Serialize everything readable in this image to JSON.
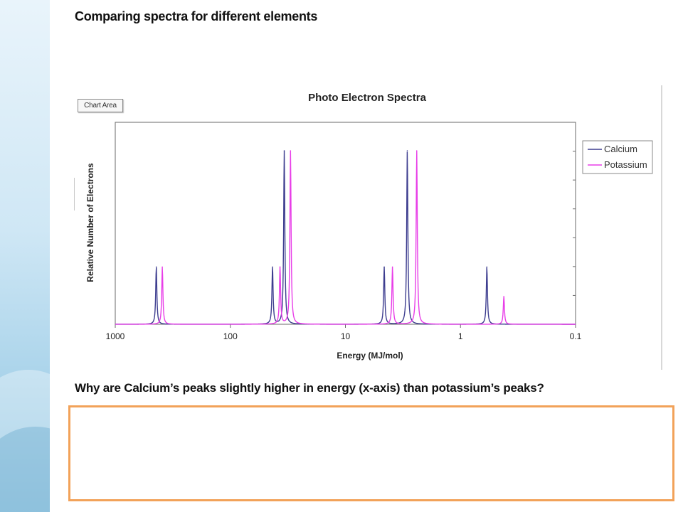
{
  "page": {
    "heading": "Comparing spectra for different elements",
    "chart_area_tag": "Chart Area",
    "question": "Why are Calcium’s peaks slightly higher in energy (x-axis) than potassium’s peaks?",
    "answer_box": {
      "value": "",
      "border_color": "#f2a259"
    }
  },
  "chart_data": {
    "type": "line",
    "title": "Photo Electron Spectra",
    "xlabel": "Energy (MJ/mol)",
    "ylabel": "Relative Number of Electrons",
    "x_scale": "log-reversed",
    "xlim": [
      1000,
      0.1
    ],
    "ylim": [
      0,
      1
    ],
    "grid": false,
    "legend": "top-right",
    "x_ticks": [
      "1000",
      "100",
      "10",
      "1",
      "0.1"
    ],
    "series": [
      {
        "name": "Calcium",
        "color": "#3d3d8f",
        "peaks": [
          {
            "x": 440,
            "y": 0.33
          },
          {
            "x": 43,
            "y": 0.33
          },
          {
            "x": 34,
            "y": 1.0
          },
          {
            "x": 4.6,
            "y": 0.33
          },
          {
            "x": 2.9,
            "y": 1.0
          },
          {
            "x": 0.59,
            "y": 0.33
          }
        ]
      },
      {
        "name": "Potassium",
        "color": "#e83ee8",
        "peaks": [
          {
            "x": 390,
            "y": 0.33
          },
          {
            "x": 37,
            "y": 0.33
          },
          {
            "x": 30,
            "y": 1.0
          },
          {
            "x": 3.9,
            "y": 0.33
          },
          {
            "x": 2.4,
            "y": 1.0
          },
          {
            "x": 0.42,
            "y": 0.16
          }
        ]
      }
    ]
  }
}
